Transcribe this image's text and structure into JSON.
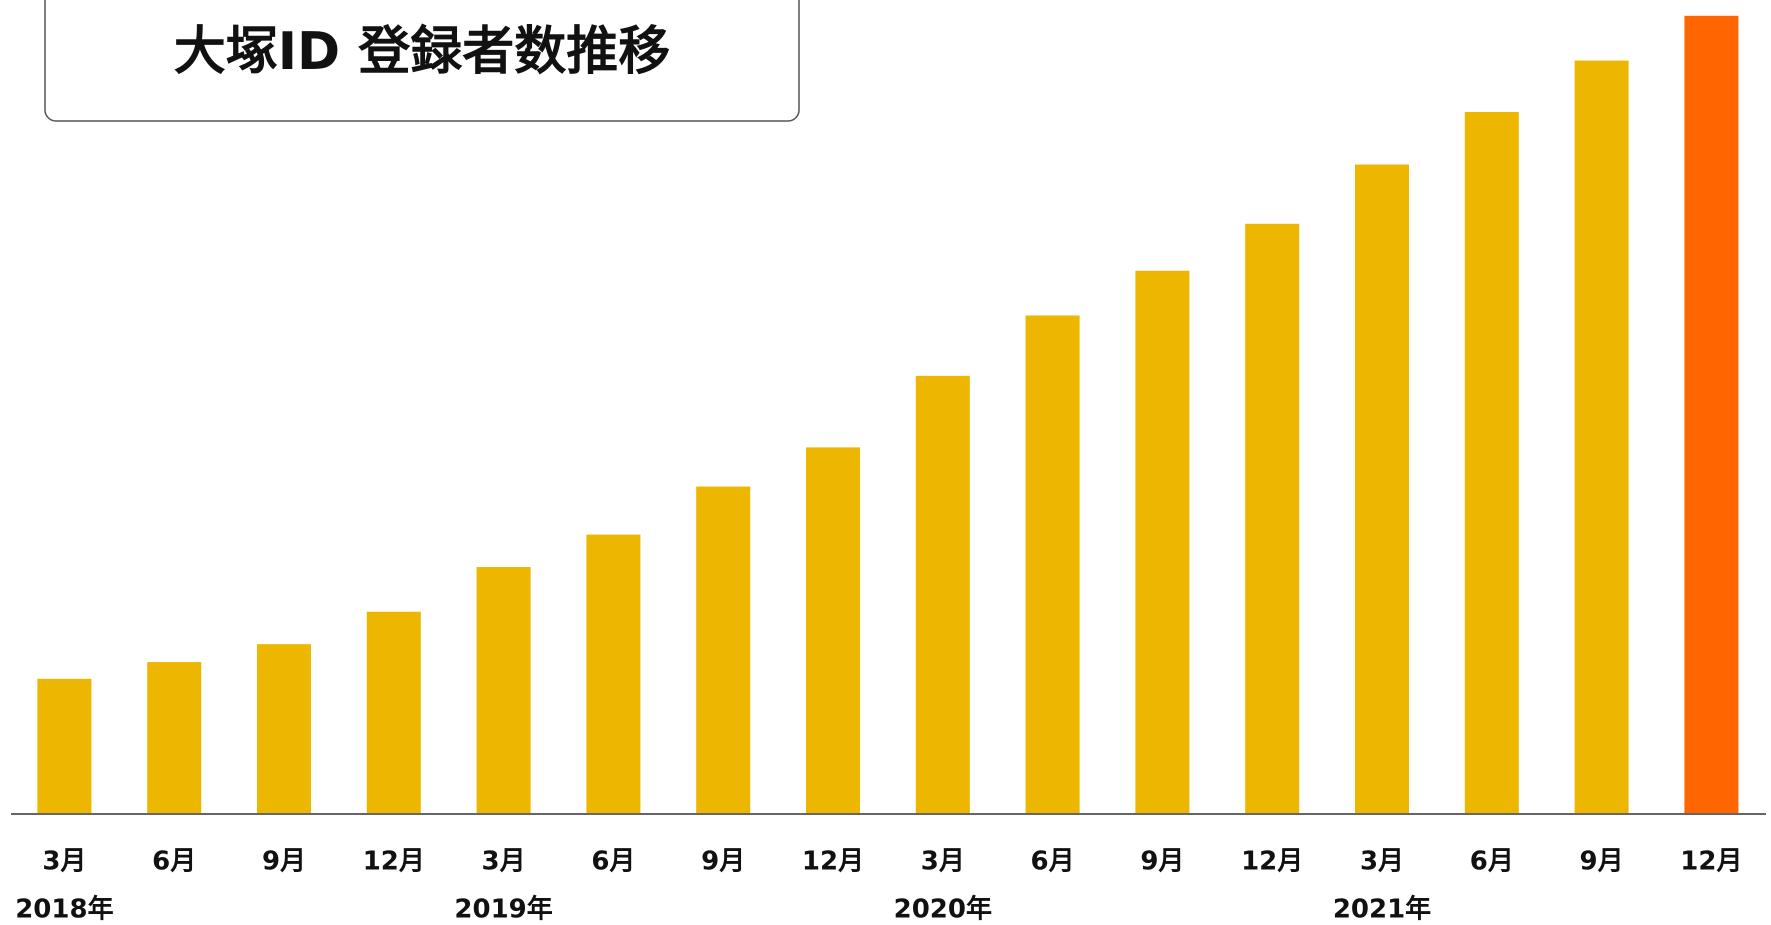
{
  "chart_data": {
    "type": "bar",
    "title": "大塚ID 登録者数推移",
    "categories": [
      "3月",
      "6月",
      "9月",
      "12月",
      "3月",
      "6月",
      "9月",
      "12月",
      "3月",
      "6月",
      "9月",
      "12月",
      "3月",
      "6月",
      "9月",
      "12月"
    ],
    "years": [
      "2018年",
      null,
      null,
      null,
      "2019年",
      null,
      null,
      null,
      "2020年",
      null,
      null,
      null,
      "2021年",
      null,
      null,
      null
    ],
    "values": [
      120,
      135,
      151,
      180,
      220,
      249,
      292,
      327,
      391,
      445,
      485,
      527,
      580,
      627,
      673,
      713
    ],
    "colors": [
      "#edb600",
      "#edb600",
      "#edb600",
      "#edb600",
      "#edb600",
      "#edb600",
      "#edb600",
      "#edb600",
      "#edb600",
      "#edb600",
      "#edb600",
      "#edb600",
      "#edb600",
      "#edb600",
      "#edb600",
      "#ff6600"
    ],
    "ylim": [
      0,
      720
    ]
  }
}
